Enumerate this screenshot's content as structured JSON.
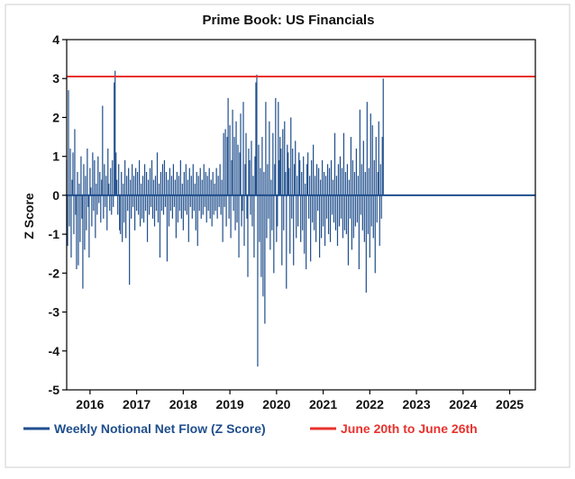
{
  "chart_data": {
    "type": "bar",
    "title": "Prime Book: US Financials",
    "xlabel": "",
    "ylabel": "Z Score",
    "ylim": [
      -5,
      4
    ],
    "yticks": [
      4,
      3,
      2,
      1,
      0,
      -1,
      -2,
      -3,
      -4,
      -5
    ],
    "xlim": [
      2015.5,
      2025.55
    ],
    "xtick_labels": [
      "2016",
      "2017",
      "2018",
      "2019",
      "2020",
      "2021",
      "2022",
      "2023",
      "2024",
      "2025"
    ],
    "xtick_values": [
      2016,
      2017,
      2018,
      2019,
      2020,
      2021,
      2022,
      2023,
      2024,
      2025
    ],
    "bar_color": "#1f4e8c",
    "reference_color": "#e8322d",
    "reference_value": 3.05,
    "grid": false,
    "legend": [
      {
        "label": "Weekly Notional Net Flow (Z Score)",
        "color": "#1f4e8c",
        "text_color": "#1f4e8c"
      },
      {
        "label": "June 20th to June 26th",
        "color": "#e8322d",
        "text_color": "#e8322d"
      }
    ],
    "series": [
      {
        "name": "Weekly Notional Net Flow (Z Score)",
        "start": 2015.5,
        "step": 0.01923,
        "values": [
          0.9,
          -1.3,
          2.7,
          -0.8,
          1.2,
          -1.6,
          0.4,
          1.1,
          -1.0,
          1.7,
          -0.5,
          -1.9,
          0.6,
          -1.8,
          0.3,
          -1.2,
          1.0,
          -0.6,
          -2.4,
          0.8,
          -1.4,
          0.5,
          -0.9,
          1.2,
          -0.3,
          -1.6,
          0.7,
          0.2,
          -0.8,
          1.1,
          -0.4,
          0.9,
          -1.1,
          0.3,
          -0.5,
          1.0,
          -0.2,
          0.6,
          -0.7,
          0.4,
          2.3,
          -0.6,
          0.8,
          -0.3,
          0.5,
          -0.9,
          1.2,
          0.3,
          -0.4,
          0.7,
          -0.5,
          0.9,
          -0.3,
          2.9,
          3.2,
          1.1,
          0.4,
          -0.5,
          0.8,
          -0.9,
          -1.0,
          0.6,
          -1.2,
          0.3,
          -0.7,
          0.9,
          -1.1,
          0.5,
          -0.4,
          0.7,
          -2.3,
          0.4,
          -0.6,
          0.8,
          -0.3,
          0.5,
          -0.9,
          0.7,
          -0.4,
          0.6,
          -0.5,
          0.9,
          -0.8,
          0.3,
          -0.6,
          0.5,
          -0.7,
          0.8,
          -0.4,
          0.6,
          -1.2,
          0.4,
          -0.5,
          0.7,
          -0.3,
          0.9,
          -0.6,
          0.4,
          -0.8,
          0.5,
          -0.4,
          1.1,
          -0.7,
          0.3,
          -1.6,
          0.6,
          -0.4,
          0.8,
          -0.5,
          0.9,
          -0.3,
          0.6,
          -1.7,
          0.4,
          -0.8,
          0.7,
          -0.4,
          0.5,
          -0.6,
          0.8,
          -0.3,
          0.4,
          -1.1,
          0.6,
          -0.7,
          0.5,
          -0.4,
          0.9,
          -0.6,
          0.3,
          -0.9,
          0.6,
          -0.4,
          0.8,
          -0.5,
          0.4,
          -1.2,
          0.7,
          -0.3,
          0.5,
          -0.6,
          0.8,
          -0.4,
          0.3,
          -0.9,
          0.6,
          -1.3,
          0.5,
          -0.4,
          0.7,
          -0.6,
          0.4,
          -0.5,
          0.8,
          -0.3,
          0.6,
          -0.7,
          0.5,
          -0.4,
          0.7,
          -0.6,
          0.4,
          -0.8,
          0.6,
          -0.5,
          0.3,
          -0.4,
          0.7,
          -0.6,
          0.5,
          -0.3,
          0.8,
          -0.5,
          0.4,
          -1.2,
          1.6,
          -0.3,
          1.7,
          -0.8,
          1.5,
          2.5,
          -0.6,
          1.8,
          -1.1,
          0.9,
          2.2,
          -0.4,
          1.5,
          -0.9,
          1.9,
          -0.7,
          1.3,
          -1.6,
          1.1,
          2.1,
          -0.8,
          -0.4,
          2.4,
          -1.3,
          0.8,
          1.6,
          -0.6,
          -2.1,
          1.2,
          0.9,
          -0.5,
          1.4,
          -0.8,
          0.5,
          -1.6,
          1.0,
          2.9,
          3.1,
          -4.4,
          1.3,
          -1.2,
          0.7,
          -2.1,
          1.5,
          -2.6,
          0.6,
          -3.3,
          2.4,
          -1.1,
          0.8,
          -0.6,
          1.9,
          -1.4,
          0.4,
          -0.9,
          1.6,
          -2.0,
          0.8,
          2.5,
          -1.2,
          -0.8,
          2.4,
          0.9,
          1.5,
          1.2,
          -1.8,
          1.7,
          -0.9,
          1.9,
          0.6,
          -2.4,
          1.3,
          1.1,
          0.7,
          -1.5,
          2.0,
          -0.6,
          1.2,
          -1.8,
          0.8,
          1.4,
          -1.1,
          0.5,
          -0.8,
          1.1,
          0.9,
          -1.2,
          0.6,
          -0.9,
          1.0,
          -1.5,
          0.3,
          -1.9,
          0.8,
          1.1,
          -0.6,
          0.5,
          -1.7,
          0.9,
          -0.7,
          1.3,
          -0.9,
          0.5,
          -1.2,
          0.8,
          -0.4,
          0.7,
          -1.6,
          0.4,
          -1.1,
          0.9,
          -0.8,
          0.6,
          -1.3,
          0.5,
          -0.6,
          0.8,
          -1.0,
          0.7,
          -1.2,
          0.9,
          -0.5,
          0.4,
          -0.7,
          1.6,
          -0.9,
          0.5,
          -1.3,
          0.8,
          -0.8,
          1.0,
          -0.6,
          0.7,
          -1.1,
          1.6,
          -0.9,
          0.6,
          -1.0,
          0.8,
          -1.8,
          0.4,
          -0.6,
          1.5,
          -1.4,
          0.9,
          -1.1,
          0.6,
          -0.8,
          1.2,
          -0.7,
          0.5,
          -1.9,
          2.2,
          -0.5,
          0.8,
          -0.9,
          1.4,
          -1.2,
          0.6,
          -2.5,
          2.4,
          -1.0,
          0.7,
          -1.6,
          2.1,
          -0.8,
          1.8,
          -1.1,
          0.9,
          -2.0,
          1.5,
          -0.7,
          0.6,
          1.9,
          -1.3,
          0.8,
          -0.6,
          1.5,
          3.0
        ]
      },
      {
        "name": "June 20th to June 26th",
        "values": [
          3.05
        ]
      }
    ]
  }
}
